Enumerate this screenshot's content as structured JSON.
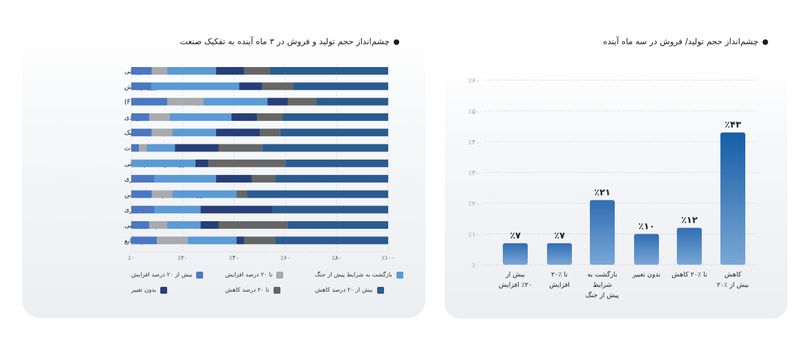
{
  "colors": {
    "s1": "#4a78c2",
    "s2": "#a8aaad",
    "s3": "#5b9bd5",
    "s4": "#263f78",
    "s5": "#666666",
    "s6": "#2b5c8f"
  },
  "chart_data": [
    {
      "type": "bar",
      "orientation": "horizontal-stacked",
      "title": "چشم‌انداز حجم تولید و فروش در ۳ ماه آینده به تفکیک صنعت",
      "categories": [
        "بازرگانی",
        "توزیع و پخش",
        "تولید کالای مصرفی (FMCG)",
        "تولیدی",
        "حمل‌ونقل و لجستیک",
        "خدمات",
        "دارویی/آرایشی/بهداشتی",
        "ساختمان‌سازی",
        "فناوری اطلاعات و خدمات آنلاین",
        "کشاورزی",
        "نفت/ گاز/ پتروشیمی",
        "سایر صنایع"
      ],
      "series": [
        {
          "name": "بیش از ۲۰ درصد افزایش",
          "values": [
            8,
            8,
            14,
            7,
            8,
            3,
            0,
            9,
            8,
            9,
            7,
            10
          ]
        },
        {
          "name": "تا ۲۰ درصد افزایش",
          "values": [
            6,
            0,
            14,
            8,
            8,
            3,
            0,
            0,
            8,
            0,
            7,
            12
          ]
        },
        {
          "name": "بازگشت به شرایط پیش از جنگ",
          "values": [
            19,
            34,
            25,
            24,
            17,
            11,
            25,
            24,
            25,
            18,
            13,
            19
          ]
        },
        {
          "name": "بدون تغییر",
          "values": [
            11,
            9,
            8,
            10,
            17,
            17,
            5,
            14,
            0,
            28,
            7,
            3
          ]
        },
        {
          "name": "تا ۲۰ درصد کاهش",
          "values": [
            10,
            12,
            11,
            10,
            8,
            17,
            30,
            9,
            4,
            0,
            27,
            12
          ]
        },
        {
          "name": "بیش از ۲۰ درصد کاهش",
          "values": [
            46,
            37,
            28,
            41,
            42,
            49,
            40,
            44,
            55,
            45,
            39,
            44
          ]
        }
      ],
      "xlim": [
        0,
        100
      ],
      "xticks": [
        "٪۰",
        "٪۲۰",
        "٪۴۰",
        "٪۶۰",
        "٪۸۰",
        "٪۱۰۰"
      ],
      "legend_position": "bottom"
    },
    {
      "type": "bar",
      "title": "چشم‌انداز حجم تولید/ فروش در سه ماه آینده",
      "categories": [
        [
          "بیش از",
          "٪۲۰ افزایش"
        ],
        [
          "تا ٪۲۰",
          "افزایش"
        ],
        [
          "بازگشت به",
          "شرایط",
          "پیش از جنگ"
        ],
        [
          "بدون تغییر"
        ],
        [
          "تا ٪۲۰ کاهش"
        ],
        [
          "کاهش",
          "بیش از ٪۲۰"
        ]
      ],
      "values": [
        7,
        7,
        21,
        10,
        12,
        43
      ],
      "data_labels": [
        "٪۷",
        "٪۷",
        "٪۲۱",
        "٪۱۰",
        "٪۱۲",
        "٪۴۳"
      ],
      "ylim": [
        0,
        60
      ],
      "yticks": [
        "٪۰",
        "٪۱۰",
        "٪۲۰",
        "٪۳۰",
        "٪۴۰",
        "٪۵۰",
        "٪۶۰"
      ],
      "grid": true
    }
  ]
}
